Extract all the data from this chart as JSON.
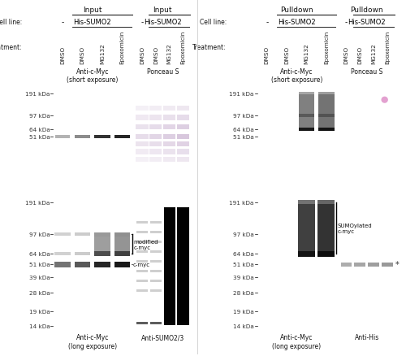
{
  "figure_bg": "#ffffff",
  "sections_top": [
    "Input",
    "Input",
    "Pulldown",
    "Pulldown"
  ],
  "cell_line_label": "Cell line:",
  "cell_line_his": "His-SUMO2",
  "cell_line_neg": "-",
  "treatment_label": "Treatment:",
  "treatments": [
    "DMSO",
    "DMSO",
    "MG132",
    "Epoxomicin"
  ],
  "mw_markers_top": [
    "191 kDa",
    "97 kDa",
    "64 kDa",
    "51 kDa"
  ],
  "mw_markers_bottom": [
    "191 kDa",
    "97 kDa",
    "64 kDa",
    "51 kDa",
    "39 kDa",
    "28 kDa",
    "19 kDa",
    "14 kDa"
  ],
  "panel_labels_row1": [
    "Anti-c-Myc\n(short exposure)",
    "Ponceau S",
    "Anti-c-Myc\n(short exposure)",
    "Ponceau S"
  ],
  "panel_labels_row2": [
    "Anti-c-Myc\n(long exposure)",
    "Anti-SUMO2/3",
    "Anti-c-Myc\n(long exposure)",
    "Anti-His"
  ],
  "annotation_modified": "modified\nc-myc",
  "annotation_cmyc": "c-myc",
  "annotation_sumoylated": "SUMOylated\nc-myc",
  "annotation_asterisk": "*"
}
